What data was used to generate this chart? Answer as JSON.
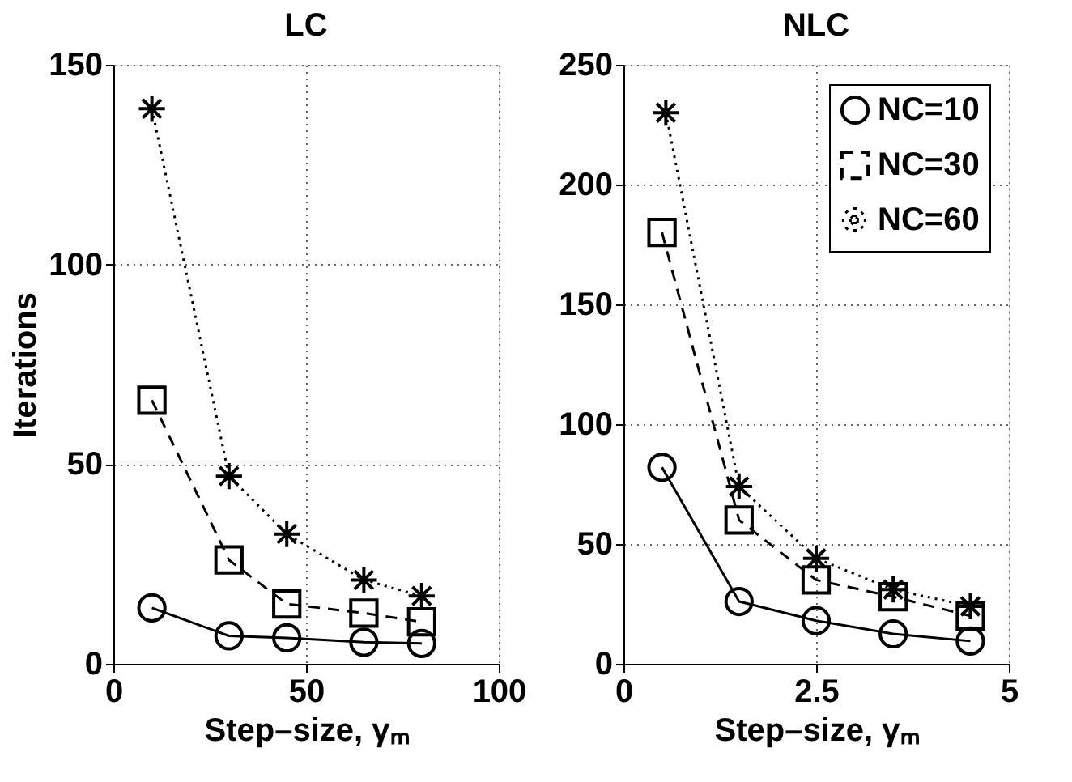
{
  "chart_data": [
    {
      "type": "line",
      "title": "LC",
      "xlabel": "Step–size, γₘ",
      "ylabel": "Iterations",
      "xlim": [
        0,
        100
      ],
      "xticks": [
        0,
        50,
        100
      ],
      "ylim": [
        0,
        150
      ],
      "yticks": [
        0,
        50,
        100,
        150
      ],
      "grid": true,
      "legend": false,
      "series": [
        {
          "color": "#000000",
          "marker": "circle",
          "line_style": "solid",
          "x": [
            10,
            30,
            45,
            65,
            80
          ],
          "values": [
            14,
            7,
            6.5,
            5.4,
            5.1
          ]
        },
        {
          "color": "#000000",
          "marker": "square",
          "line_style": "dashed",
          "x": [
            10,
            30,
            45,
            65,
            80
          ],
          "values": [
            66,
            26,
            15,
            12.7,
            10.5
          ]
        },
        {
          "color": "#000000",
          "marker": "cross",
          "line_style": "dotted",
          "x": [
            10,
            30,
            45,
            65,
            80
          ],
          "values": [
            139,
            47,
            32.5,
            21,
            17
          ]
        }
      ]
    },
    {
      "type": "line",
      "title": "NLC",
      "xlabel": "Step–size, γₘ",
      "xlim": [
        0,
        5
      ],
      "xticks": [
        0,
        {
          "value": 2.5,
          "label": "2.5"
        },
        5
      ],
      "ylim": [
        0,
        250
      ],
      "yticks": [
        0,
        50,
        100,
        150,
        200,
        250
      ],
      "grid": true,
      "legend": "top right",
      "series": [
        {
          "name": "NC=10",
          "color": "#000000",
          "marker": "circle",
          "line_style": "solid",
          "x": [
            0.5,
            1.5,
            2.5,
            3.5,
            4.5
          ],
          "values": [
            82,
            26,
            18,
            12.5,
            9.5
          ]
        },
        {
          "name": "NC=30",
          "color": "#000000",
          "marker": "square",
          "line_style": "dashed",
          "x": [
            0.5,
            1.5,
            2.5,
            3.5,
            4.5
          ],
          "values": [
            180,
            60,
            35,
            28,
            20
          ]
        },
        {
          "name": "NC=60",
          "color": "#000000",
          "marker": "cross",
          "line_style": "dotted",
          "x": [
            0.55,
            1.5,
            2.5,
            3.5,
            4.5
          ],
          "values": [
            230,
            74,
            44,
            31,
            24
          ]
        }
      ]
    }
  ]
}
